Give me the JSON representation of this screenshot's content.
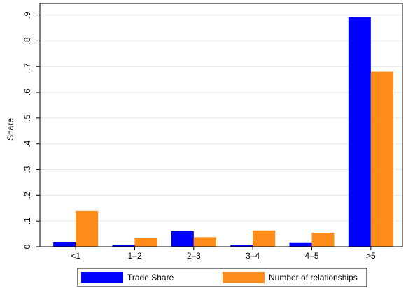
{
  "chart_data": {
    "type": "bar",
    "ylabel": "Share",
    "categories": [
      "<1",
      "1–2",
      "2–3",
      "3–4",
      "4–5",
      ">5"
    ],
    "series": [
      {
        "name": "Trade Share",
        "color": "#0000ff",
        "values": [
          0.019,
          0.008,
          0.06,
          0.006,
          0.017,
          0.892
        ]
      },
      {
        "name": "Number of relationships",
        "color": "#ff8c1a",
        "values": [
          0.139,
          0.033,
          0.037,
          0.063,
          0.054,
          0.68
        ]
      }
    ],
    "ylim": [
      0,
      0.945
    ],
    "yticks": [
      0,
      {
        "value": 0.1,
        "label": ".1"
      },
      {
        "value": 0.2,
        "label": ".2"
      },
      {
        "value": 0.3,
        "label": ".3"
      },
      {
        "value": 0.4,
        "label": ".4"
      },
      {
        "value": 0.5,
        "label": ".5"
      },
      {
        "value": 0.6,
        "label": ".6"
      },
      {
        "value": 0.7,
        "label": ".7"
      },
      {
        "value": 0.8,
        "label": ".8"
      },
      {
        "value": 0.9,
        "label": ".9"
      }
    ],
    "grid": true,
    "legend": "bottom"
  }
}
